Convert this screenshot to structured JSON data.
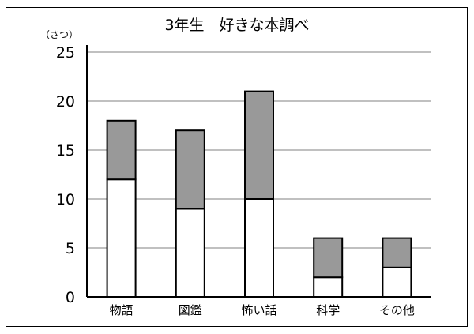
{
  "chart_data": {
    "type": "bar",
    "stacked": true,
    "title": "3年生　好きな本調べ",
    "ylabel": "（さつ）",
    "xlabel": "",
    "categories": [
      "物語",
      "図鑑",
      "怖い話",
      "科学",
      "その他"
    ],
    "series": [
      {
        "values": [
          12,
          9,
          10,
          2,
          3
        ],
        "color": "#ffffff"
      },
      {
        "values": [
          6,
          8,
          11,
          4,
          3
        ],
        "color": "#999999"
      }
    ],
    "totals": [
      18,
      17,
      21,
      6,
      6
    ],
    "ylim": [
      0,
      25
    ],
    "yticks": [
      0,
      5,
      10,
      15,
      20,
      25
    ],
    "grid": true,
    "legend": "none"
  }
}
